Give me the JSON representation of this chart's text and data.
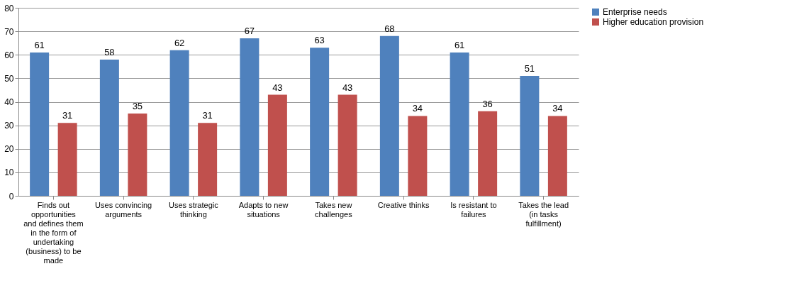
{
  "chart_data": {
    "type": "bar",
    "categories": [
      "Finds out opportunities and defines them in the form of undertaking (business) to be made",
      "Uses convincing arguments",
      "Uses strategic thinking",
      "Adapts to new situations",
      "Takes new challenges",
      "Creative thinks",
      "Is resistant to failures",
      "Takes the lead (in tasks fulfillment)"
    ],
    "series": [
      {
        "name": "Enterprise needs",
        "color": "#4f81bd",
        "values": [
          61,
          58,
          62,
          67,
          63,
          68,
          61,
          51
        ]
      },
      {
        "name": "Higher education provision",
        "color": "#c0504d",
        "values": [
          31,
          35,
          31,
          43,
          43,
          34,
          36,
          34
        ]
      }
    ],
    "ylim": [
      0,
      80
    ],
    "yticks": [
      0,
      10,
      20,
      30,
      40,
      50,
      60,
      70,
      80
    ],
    "grid": "y",
    "legend": "right",
    "data_labels": true
  }
}
